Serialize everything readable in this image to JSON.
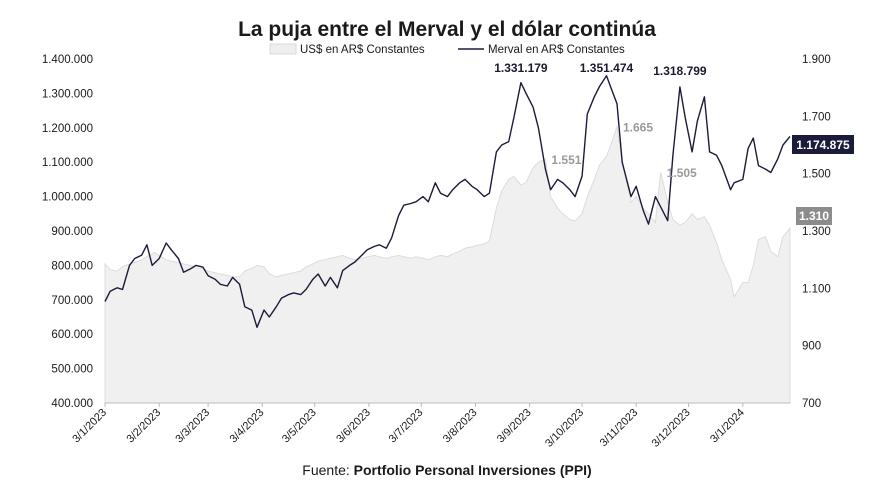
{
  "chart_data": {
    "type": "line",
    "title": "La puja entre el Merval y el dólar continúa",
    "source_label": "Fuente: ",
    "source_name": "Portfolio Personal Inversiones (PPI)",
    "x_ticks": [
      "3/1/2023",
      "3/2/2023",
      "3/3/2023",
      "3/4/2023",
      "3/5/2023",
      "3/6/2023",
      "3/7/2023",
      "3/8/2023",
      "3/9/2023",
      "3/10/2023",
      "3/11/2023",
      "3/12/2023",
      "3/1/2024"
    ],
    "y_left": {
      "ticks": [
        "400.000",
        "500.000",
        "600.000",
        "700.000",
        "800.000",
        "900.000",
        "1.000.000",
        "1.100.000",
        "1.200.000",
        "1.300.000",
        "1.400.000"
      ],
      "ylim": [
        400000,
        1400000
      ]
    },
    "y_right": {
      "ticks": [
        "700",
        "900",
        "1.100",
        "1.300",
        "1.500",
        "1.700",
        "1.900"
      ],
      "ylim": [
        700,
        1900
      ]
    },
    "grid": false,
    "legend_position": "top-center",
    "colors": {
      "area": "#f0f0f0",
      "area_stroke": "#dcdcdc",
      "line": "#1b1b3a",
      "badge_dark": "#1b1b3a",
      "badge_gray": "#8c8c8c",
      "ann_gray": "#9a9a9a"
    },
    "series": [
      {
        "name": "US$ en AR$ Constantes",
        "type": "area",
        "axis": "right",
        "points": [
          [
            "2023-01-03",
            1185
          ],
          [
            "2023-01-06",
            1165
          ],
          [
            "2023-01-10",
            1160
          ],
          [
            "2023-01-13",
            1175
          ],
          [
            "2023-01-17",
            1185
          ],
          [
            "2023-01-20",
            1190
          ],
          [
            "2023-01-24",
            1200
          ],
          [
            "2023-01-27",
            1210
          ],
          [
            "2023-01-31",
            1225
          ],
          [
            "2023-02-03",
            1215
          ],
          [
            "2023-02-07",
            1200
          ],
          [
            "2023-02-10",
            1195
          ],
          [
            "2023-02-14",
            1190
          ],
          [
            "2023-02-17",
            1185
          ],
          [
            "2023-02-21",
            1180
          ],
          [
            "2023-02-24",
            1170
          ],
          [
            "2023-02-28",
            1170
          ],
          [
            "2023-03-03",
            1160
          ],
          [
            "2023-03-07",
            1155
          ],
          [
            "2023-03-10",
            1150
          ],
          [
            "2023-03-14",
            1145
          ],
          [
            "2023-03-17",
            1140
          ],
          [
            "2023-03-21",
            1140
          ],
          [
            "2023-03-24",
            1160
          ],
          [
            "2023-03-28",
            1170
          ],
          [
            "2023-03-31",
            1180
          ],
          [
            "2023-04-04",
            1175
          ],
          [
            "2023-04-07",
            1150
          ],
          [
            "2023-04-11",
            1140
          ],
          [
            "2023-04-14",
            1145
          ],
          [
            "2023-04-18",
            1150
          ],
          [
            "2023-04-21",
            1155
          ],
          [
            "2023-04-25",
            1160
          ],
          [
            "2023-04-28",
            1175
          ],
          [
            "2023-05-02",
            1185
          ],
          [
            "2023-05-05",
            1195
          ],
          [
            "2023-05-09",
            1200
          ],
          [
            "2023-05-12",
            1205
          ],
          [
            "2023-05-16",
            1210
          ],
          [
            "2023-05-19",
            1215
          ],
          [
            "2023-05-23",
            1205
          ],
          [
            "2023-05-26",
            1200
          ],
          [
            "2023-05-30",
            1205
          ],
          [
            "2023-06-02",
            1210
          ],
          [
            "2023-06-06",
            1215
          ],
          [
            "2023-06-09",
            1210
          ],
          [
            "2023-06-13",
            1205
          ],
          [
            "2023-06-16",
            1210
          ],
          [
            "2023-06-20",
            1215
          ],
          [
            "2023-06-23",
            1210
          ],
          [
            "2023-06-27",
            1205
          ],
          [
            "2023-06-30",
            1210
          ],
          [
            "2023-07-04",
            1205
          ],
          [
            "2023-07-07",
            1200
          ],
          [
            "2023-07-11",
            1210
          ],
          [
            "2023-07-14",
            1215
          ],
          [
            "2023-07-18",
            1210
          ],
          [
            "2023-07-21",
            1220
          ],
          [
            "2023-07-25",
            1230
          ],
          [
            "2023-07-28",
            1240
          ],
          [
            "2023-08-01",
            1245
          ],
          [
            "2023-08-04",
            1250
          ],
          [
            "2023-08-08",
            1255
          ],
          [
            "2023-08-11",
            1265
          ],
          [
            "2023-08-15",
            1380
          ],
          [
            "2023-08-18",
            1440
          ],
          [
            "2023-08-22",
            1480
          ],
          [
            "2023-08-25",
            1490
          ],
          [
            "2023-08-29",
            1460
          ],
          [
            "2023-09-01",
            1470
          ],
          [
            "2023-09-05",
            1520
          ],
          [
            "2023-09-08",
            1540
          ],
          [
            "2023-09-12",
            1551
          ],
          [
            "2023-09-15",
            1420
          ],
          [
            "2023-09-19",
            1380
          ],
          [
            "2023-09-22",
            1360
          ],
          [
            "2023-09-26",
            1340
          ],
          [
            "2023-09-29",
            1335
          ],
          [
            "2023-10-03",
            1360
          ],
          [
            "2023-10-06",
            1420
          ],
          [
            "2023-10-10",
            1480
          ],
          [
            "2023-10-13",
            1530
          ],
          [
            "2023-10-17",
            1560
          ],
          [
            "2023-10-20",
            1610
          ],
          [
            "2023-10-23",
            1665
          ],
          [
            "2023-10-26",
            1540
          ],
          [
            "2023-10-31",
            1400
          ],
          [
            "2023-11-03",
            1420
          ],
          [
            "2023-11-07",
            1380
          ],
          [
            "2023-11-10",
            1360
          ],
          [
            "2023-11-14",
            1330
          ],
          [
            "2023-11-17",
            1505
          ],
          [
            "2023-11-21",
            1400
          ],
          [
            "2023-11-24",
            1340
          ],
          [
            "2023-11-28",
            1320
          ],
          [
            "2023-12-01",
            1330
          ],
          [
            "2023-12-05",
            1360
          ],
          [
            "2023-12-08",
            1340
          ],
          [
            "2023-12-12",
            1350
          ],
          [
            "2023-12-15",
            1320
          ],
          [
            "2023-12-19",
            1260
          ],
          [
            "2023-12-22",
            1200
          ],
          [
            "2023-12-27",
            1130
          ],
          [
            "2023-12-29",
            1070
          ],
          [
            "2024-01-03",
            1120
          ],
          [
            "2024-01-06",
            1120
          ],
          [
            "2024-01-09",
            1180
          ],
          [
            "2024-01-12",
            1270
          ],
          [
            "2024-01-16",
            1280
          ],
          [
            "2024-01-19",
            1230
          ],
          [
            "2024-01-23",
            1210
          ],
          [
            "2024-01-26",
            1280
          ],
          [
            "2024-01-30",
            1310
          ]
        ]
      },
      {
        "name": "Merval en AR$ Constantes",
        "type": "line",
        "axis": "left",
        "points": [
          [
            "2023-01-03",
            695
          ],
          [
            "2023-01-06",
            725
          ],
          [
            "2023-01-10",
            735
          ],
          [
            "2023-01-13",
            730
          ],
          [
            "2023-01-17",
            800
          ],
          [
            "2023-01-20",
            820
          ],
          [
            "2023-01-24",
            830
          ],
          [
            "2023-01-27",
            860
          ],
          [
            "2023-01-30",
            800
          ],
          [
            "2023-02-03",
            820
          ],
          [
            "2023-02-07",
            865
          ],
          [
            "2023-02-10",
            845
          ],
          [
            "2023-02-14",
            820
          ],
          [
            "2023-02-17",
            780
          ],
          [
            "2023-02-21",
            790
          ],
          [
            "2023-02-24",
            800
          ],
          [
            "2023-02-28",
            795
          ],
          [
            "2023-03-03",
            770
          ],
          [
            "2023-03-07",
            760
          ],
          [
            "2023-03-10",
            745
          ],
          [
            "2023-03-14",
            740
          ],
          [
            "2023-03-17",
            765
          ],
          [
            "2023-03-21",
            745
          ],
          [
            "2023-03-24",
            680
          ],
          [
            "2023-03-28",
            670
          ],
          [
            "2023-03-31",
            620
          ],
          [
            "2023-04-04",
            670
          ],
          [
            "2023-04-07",
            650
          ],
          [
            "2023-04-11",
            680
          ],
          [
            "2023-04-14",
            705
          ],
          [
            "2023-04-18",
            715
          ],
          [
            "2023-04-21",
            720
          ],
          [
            "2023-04-25",
            715
          ],
          [
            "2023-04-28",
            730
          ],
          [
            "2023-05-02",
            760
          ],
          [
            "2023-05-05",
            775
          ],
          [
            "2023-05-09",
            740
          ],
          [
            "2023-05-12",
            765
          ],
          [
            "2023-05-16",
            735
          ],
          [
            "2023-05-19",
            785
          ],
          [
            "2023-05-23",
            800
          ],
          [
            "2023-05-26",
            810
          ],
          [
            "2023-05-30",
            830
          ],
          [
            "2023-06-02",
            845
          ],
          [
            "2023-06-06",
            855
          ],
          [
            "2023-06-09",
            860
          ],
          [
            "2023-06-13",
            850
          ],
          [
            "2023-06-16",
            880
          ],
          [
            "2023-06-20",
            945
          ],
          [
            "2023-06-23",
            975
          ],
          [
            "2023-06-27",
            980
          ],
          [
            "2023-06-30",
            985
          ],
          [
            "2023-07-04",
            1000
          ],
          [
            "2023-07-07",
            985
          ],
          [
            "2023-07-11",
            1040
          ],
          [
            "2023-07-14",
            1010
          ],
          [
            "2023-07-18",
            1000
          ],
          [
            "2023-07-21",
            1020
          ],
          [
            "2023-07-25",
            1040
          ],
          [
            "2023-07-28",
            1050
          ],
          [
            "2023-08-01",
            1030
          ],
          [
            "2023-08-04",
            1020
          ],
          [
            "2023-08-08",
            1000
          ],
          [
            "2023-08-11",
            1010
          ],
          [
            "2023-08-15",
            1130
          ],
          [
            "2023-08-18",
            1150
          ],
          [
            "2023-08-22",
            1160
          ],
          [
            "2023-08-25",
            1230
          ],
          [
            "2023-08-29",
            1331.179
          ],
          [
            "2023-09-01",
            1300
          ],
          [
            "2023-09-05",
            1260
          ],
          [
            "2023-09-08",
            1200
          ],
          [
            "2023-09-12",
            1080
          ],
          [
            "2023-09-15",
            1020
          ],
          [
            "2023-09-19",
            1050
          ],
          [
            "2023-09-22",
            1040
          ],
          [
            "2023-09-26",
            1020
          ],
          [
            "2023-09-29",
            1000
          ],
          [
            "2023-10-03",
            1060
          ],
          [
            "2023-10-06",
            1240
          ],
          [
            "2023-10-10",
            1290
          ],
          [
            "2023-10-13",
            1320
          ],
          [
            "2023-10-17",
            1351.474
          ],
          [
            "2023-10-20",
            1310
          ],
          [
            "2023-10-23",
            1270
          ],
          [
            "2023-10-26",
            1100
          ],
          [
            "2023-10-31",
            1000
          ],
          [
            "2023-11-03",
            1030
          ],
          [
            "2023-11-07",
            960
          ],
          [
            "2023-11-10",
            920
          ],
          [
            "2023-11-14",
            1000
          ],
          [
            "2023-11-17",
            970
          ],
          [
            "2023-11-21",
            930
          ],
          [
            "2023-11-24",
            1120
          ],
          [
            "2023-11-28",
            1318.799
          ],
          [
            "2023-12-01",
            1230
          ],
          [
            "2023-12-05",
            1130
          ],
          [
            "2023-12-08",
            1220
          ],
          [
            "2023-12-12",
            1290
          ],
          [
            "2023-12-15",
            1130
          ],
          [
            "2023-12-19",
            1120
          ],
          [
            "2023-12-22",
            1090
          ],
          [
            "2023-12-27",
            1020
          ],
          [
            "2023-12-29",
            1040
          ],
          [
            "2024-01-03",
            1050
          ],
          [
            "2024-01-06",
            1140
          ],
          [
            "2024-01-09",
            1170
          ],
          [
            "2024-01-12",
            1090
          ],
          [
            "2024-01-16",
            1080
          ],
          [
            "2024-01-19",
            1070
          ],
          [
            "2024-01-23",
            1110
          ],
          [
            "2024-01-26",
            1150
          ],
          [
            "2024-01-30",
            1174.875
          ]
        ]
      }
    ],
    "annotations": [
      {
        "text": "1.331.179",
        "date": "2023-08-29",
        "axis": "left",
        "value": 1331179,
        "style": "dark"
      },
      {
        "text": "1.351.474",
        "date": "2023-10-17",
        "axis": "left",
        "value": 1351474,
        "style": "dark"
      },
      {
        "text": "1.318.799",
        "date": "2023-11-28",
        "axis": "left",
        "value": 1318799,
        "style": "dark"
      },
      {
        "text": "1.551",
        "date": "2023-09-12",
        "axis": "right",
        "value": 1551,
        "style": "gray"
      },
      {
        "text": "1.665",
        "date": "2023-10-23",
        "axis": "right",
        "value": 1665,
        "style": "gray"
      },
      {
        "text": "1.505",
        "date": "2023-11-17",
        "axis": "right",
        "value": 1505,
        "style": "gray"
      }
    ],
    "last_values": {
      "merval": "1.174.875",
      "usd": "1.310"
    }
  }
}
